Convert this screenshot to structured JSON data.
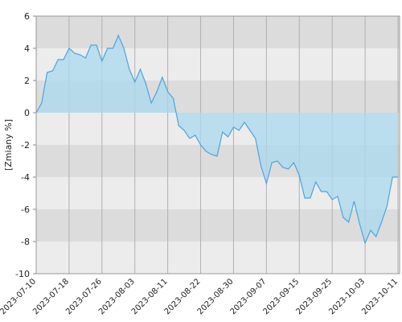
{
  "chart_data": {
    "type": "area",
    "y_label": "[Zmiany %]",
    "categories": [
      "2023-07-10",
      null,
      null,
      null,
      null,
      null,
      "2023-07-18",
      null,
      null,
      null,
      null,
      null,
      "2023-07-26",
      null,
      null,
      null,
      null,
      null,
      "2023-08-03",
      null,
      null,
      null,
      null,
      null,
      "2023-08-11",
      null,
      null,
      null,
      null,
      null,
      "2023-08-22",
      null,
      null,
      null,
      null,
      null,
      "2023-08-30",
      null,
      null,
      null,
      null,
      null,
      "2023-09-07",
      null,
      null,
      null,
      null,
      null,
      "2023-09-15",
      null,
      null,
      null,
      null,
      null,
      "2023-09-25",
      null,
      null,
      null,
      null,
      null,
      "2023-10-03",
      null,
      null,
      null,
      null,
      null,
      "2023-10-11"
    ],
    "values": [
      0,
      0.6,
      2.5,
      2.6,
      3.3,
      3.3,
      4.0,
      3.7,
      3.6,
      3.4,
      4.2,
      4.2,
      3.2,
      4.0,
      4.0,
      4.8,
      4.0,
      2.7,
      1.9,
      2.7,
      1.8,
      0.6,
      1.3,
      2.2,
      1.3,
      0.9,
      -0.8,
      -1.1,
      -1.6,
      -1.4,
      -2.0,
      -2.4,
      -2.6,
      -2.7,
      -1.2,
      -1.5,
      -0.9,
      -1.1,
      -0.6,
      -1.1,
      -1.6,
      -3.3,
      -4.4,
      -3.1,
      -3.0,
      -3.4,
      -3.5,
      -3.1,
      -3.9,
      -5.3,
      -5.3,
      -4.3,
      -4.9,
      -4.9,
      -5.4,
      -5.2,
      -6.5,
      -6.8,
      -5.5,
      -6.9,
      -8.1,
      -7.3,
      -7.7,
      -6.8,
      -5.8,
      -4.0,
      -4.0
    ],
    "color": "#4fa3e0",
    "fill": "#a9d9ee",
    "ylim": [
      -10,
      6
    ],
    "yticks": [
      -10,
      -8,
      -6,
      -4,
      -2,
      0,
      2,
      4,
      6
    ],
    "bands": true,
    "band_colors": [
      "#ececec",
      "#dcdcdc"
    ],
    "grid": true
  }
}
